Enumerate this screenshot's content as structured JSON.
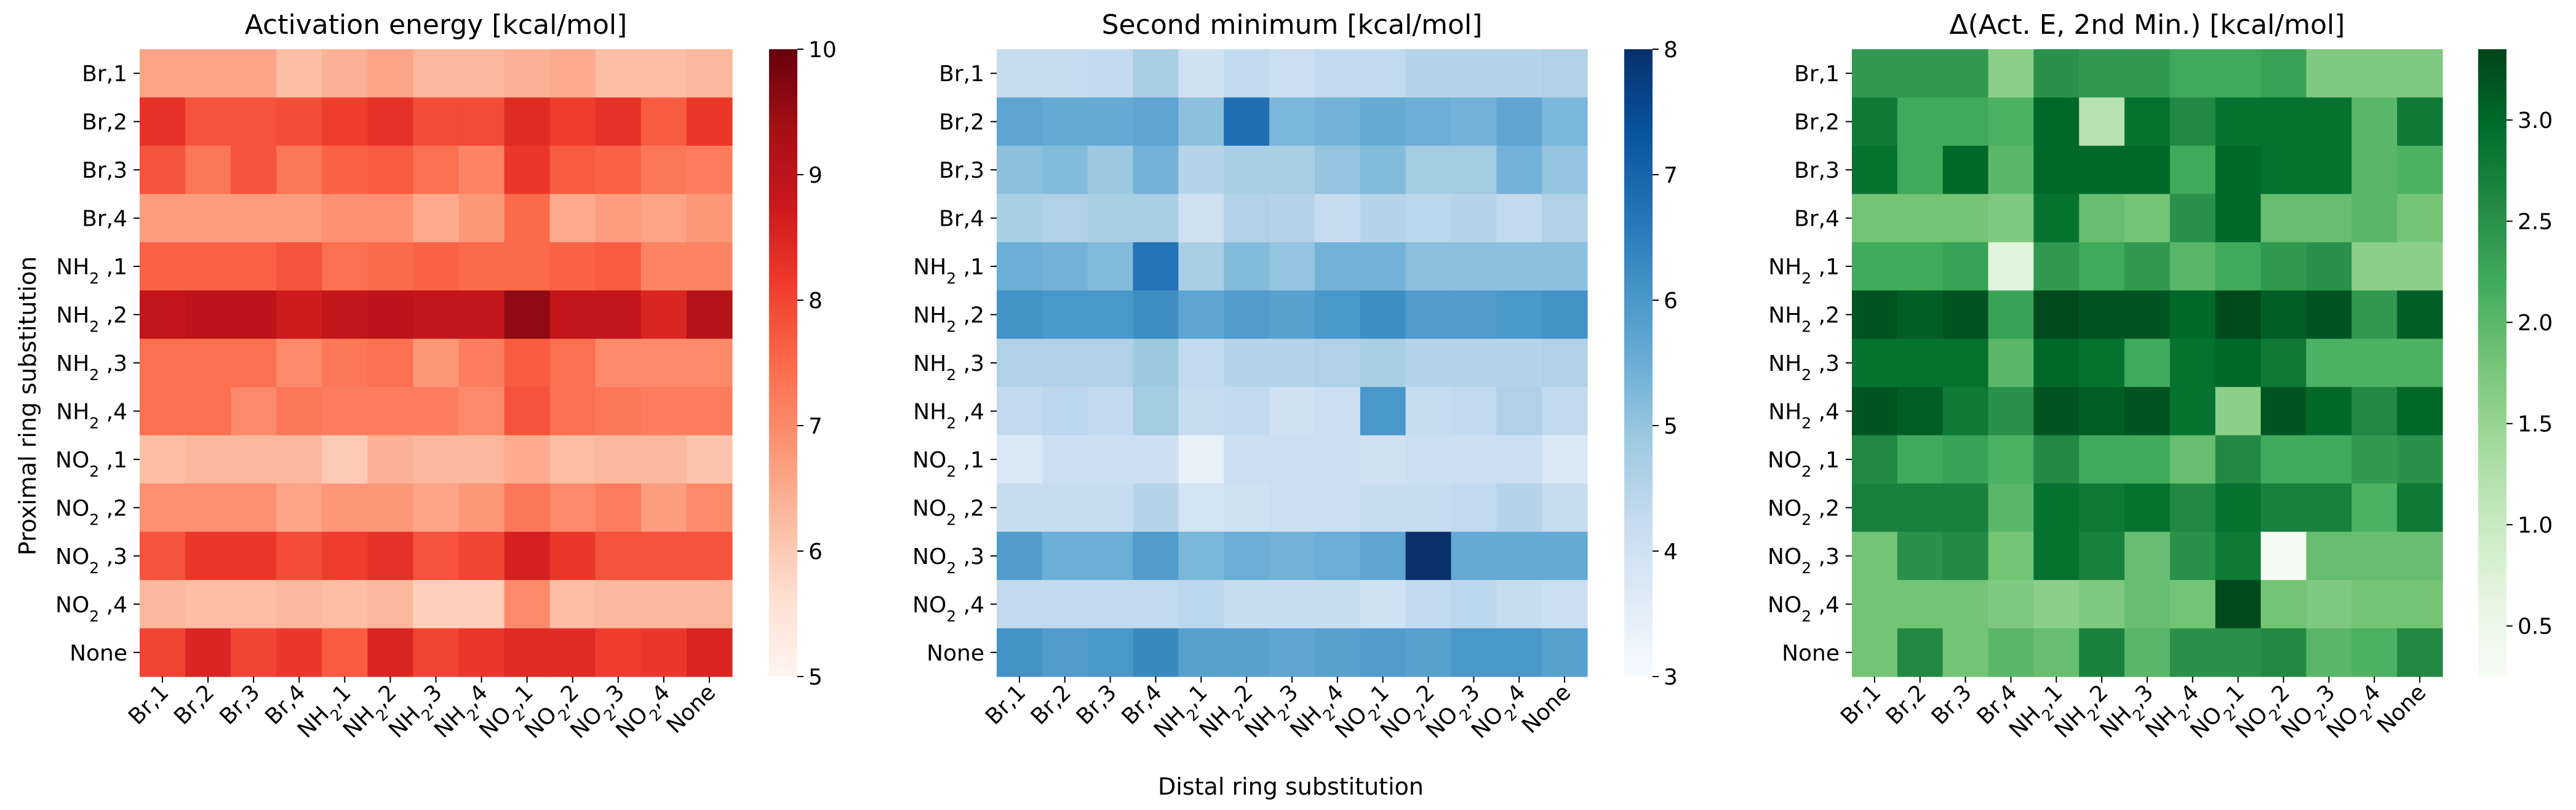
{
  "chart_data": [
    {
      "type": "heatmap",
      "title": "Activation energy [kcal/mol]",
      "colormap": "Reds",
      "color_stops": [
        "#fff5f0",
        "#fee0d2",
        "#fcbba1",
        "#fc9272",
        "#fb6a4a",
        "#ef3b2c",
        "#cb181d",
        "#a50f15",
        "#67000d"
      ],
      "vmin": 5,
      "vmax": 10,
      "colorbar_ticks": [
        "5",
        "6",
        "7",
        "8",
        "9",
        "10"
      ],
      "rows": [
        [
          6.6,
          6.6,
          6.6,
          6.2,
          6.4,
          6.6,
          6.3,
          6.3,
          6.4,
          6.5,
          6.2,
          6.2,
          6.3
        ],
        [
          8.3,
          7.8,
          7.8,
          7.9,
          8.1,
          8.3,
          7.9,
          7.9,
          8.4,
          8.1,
          8.3,
          7.7,
          8.2
        ],
        [
          7.8,
          7.3,
          7.8,
          7.3,
          7.6,
          7.7,
          7.4,
          7.1,
          8.2,
          7.7,
          7.6,
          7.3,
          7.2
        ],
        [
          6.7,
          6.7,
          6.7,
          6.7,
          6.9,
          6.9,
          6.5,
          6.8,
          7.5,
          6.5,
          6.7,
          6.6,
          6.8
        ],
        [
          7.6,
          7.6,
          7.6,
          7.8,
          7.4,
          7.5,
          7.6,
          7.5,
          7.5,
          7.6,
          7.7,
          7.1,
          7.1
        ],
        [
          8.9,
          9.0,
          9.0,
          8.7,
          8.9,
          9.0,
          8.9,
          8.9,
          9.6,
          8.9,
          8.9,
          8.5,
          9.1
        ],
        [
          7.4,
          7.4,
          7.4,
          7.0,
          7.3,
          7.4,
          6.8,
          7.2,
          7.7,
          7.4,
          7.0,
          7.0,
          7.0
        ],
        [
          7.4,
          7.4,
          7.0,
          7.3,
          7.2,
          7.2,
          7.2,
          7.0,
          7.8,
          7.4,
          7.3,
          7.2,
          7.2
        ],
        [
          6.2,
          6.3,
          6.3,
          6.3,
          6.0,
          6.4,
          6.3,
          6.3,
          6.5,
          6.2,
          6.3,
          6.3,
          6.1
        ],
        [
          6.9,
          6.9,
          6.9,
          6.6,
          6.8,
          6.8,
          6.6,
          6.8,
          7.3,
          7.0,
          7.2,
          6.7,
          7.0
        ],
        [
          7.8,
          8.2,
          8.2,
          7.9,
          8.1,
          8.3,
          7.8,
          8.0,
          8.6,
          8.2,
          7.8,
          7.8,
          7.8
        ],
        [
          6.3,
          6.2,
          6.2,
          6.3,
          6.2,
          6.3,
          5.9,
          5.9,
          7.0,
          6.2,
          6.3,
          6.3,
          6.3
        ],
        [
          8.0,
          8.5,
          8.0,
          8.2,
          7.7,
          8.5,
          8.0,
          8.2,
          8.4,
          8.4,
          8.1,
          8.2,
          8.5
        ]
      ]
    },
    {
      "type": "heatmap",
      "title": "Second minimum [kcal/mol]",
      "colormap": "Blues",
      "color_stops": [
        "#f7fbff",
        "#deebf7",
        "#c6dbef",
        "#9ecae1",
        "#6baed6",
        "#4292c6",
        "#2171b5",
        "#08519c",
        "#08306b"
      ],
      "vmin": 3,
      "vmax": 8,
      "colorbar_ticks": [
        "3",
        "4",
        "5",
        "6",
        "7",
        "8"
      ],
      "rows": [
        [
          4.2,
          4.2,
          4.3,
          4.7,
          4.0,
          4.3,
          4.1,
          4.3,
          4.3,
          4.5,
          4.5,
          4.5,
          4.6
        ],
        [
          5.7,
          5.6,
          5.6,
          5.7,
          5.1,
          6.8,
          5.3,
          5.4,
          5.6,
          5.5,
          5.4,
          5.7,
          5.3
        ],
        [
          5.1,
          5.2,
          4.9,
          5.4,
          4.5,
          4.7,
          4.7,
          5.0,
          5.2,
          4.8,
          4.8,
          5.4,
          5.0
        ],
        [
          4.7,
          4.6,
          4.7,
          4.7,
          4.0,
          4.6,
          4.5,
          4.2,
          4.5,
          4.4,
          4.5,
          4.3,
          4.6
        ],
        [
          5.5,
          5.4,
          5.2,
          6.7,
          4.7,
          5.2,
          5.0,
          5.4,
          5.4,
          5.1,
          5.1,
          5.1,
          5.1
        ],
        [
          6.1,
          6.0,
          6.0,
          6.2,
          5.7,
          5.9,
          5.8,
          6.0,
          6.2,
          5.9,
          5.9,
          6.0,
          6.1
        ],
        [
          4.6,
          4.6,
          4.6,
          4.9,
          4.3,
          4.5,
          4.5,
          4.6,
          4.7,
          4.5,
          4.5,
          4.5,
          4.6
        ],
        [
          4.3,
          4.4,
          4.3,
          4.8,
          4.2,
          4.3,
          4.0,
          4.1,
          6.0,
          4.2,
          4.3,
          4.6,
          4.3
        ],
        [
          3.7,
          4.1,
          4.1,
          4.1,
          3.4,
          4.1,
          4.1,
          4.1,
          4.0,
          4.1,
          4.1,
          4.1,
          3.7
        ],
        [
          4.2,
          4.2,
          4.2,
          4.5,
          3.9,
          4.0,
          4.1,
          4.1,
          4.2,
          4.2,
          4.3,
          4.5,
          4.2
        ],
        [
          5.9,
          5.5,
          5.5,
          5.9,
          5.3,
          5.5,
          5.4,
          5.5,
          5.7,
          8.0,
          5.6,
          5.6,
          5.6
        ],
        [
          4.3,
          4.3,
          4.3,
          4.3,
          4.4,
          4.2,
          4.2,
          4.2,
          4.0,
          4.3,
          4.4,
          4.2,
          4.1
        ],
        [
          6.1,
          5.9,
          6.0,
          6.3,
          5.8,
          5.8,
          5.7,
          5.8,
          5.9,
          5.8,
          6.0,
          6.0,
          5.8
        ]
      ]
    },
    {
      "type": "heatmap",
      "title": "Δ(Act. E, 2nd Min.) [kcal/mol]",
      "colormap": "Greens",
      "color_stops": [
        "#f7fcf5",
        "#e5f5e0",
        "#c7e9c0",
        "#a1d99b",
        "#74c476",
        "#41ab5d",
        "#238b45",
        "#006d2c",
        "#00441b"
      ],
      "vmin": 0.25,
      "vmax": 3.35,
      "colorbar_ticks": [
        "0.5",
        "1.0",
        "1.5",
        "2.0",
        "2.5",
        "3.0"
      ],
      "rows": [
        [
          2.4,
          2.4,
          2.4,
          1.6,
          2.5,
          2.4,
          2.4,
          2.2,
          2.2,
          2.3,
          1.7,
          1.7,
          1.7
        ],
        [
          2.8,
          2.2,
          2.2,
          2.1,
          3.0,
          1.2,
          2.9,
          2.6,
          2.9,
          2.9,
          2.9,
          2.0,
          2.8
        ],
        [
          2.9,
          2.2,
          3.0,
          2.0,
          3.0,
          3.0,
          3.0,
          2.2,
          3.0,
          2.9,
          2.9,
          2.0,
          2.1
        ],
        [
          1.8,
          1.8,
          1.8,
          1.7,
          2.9,
          1.9,
          1.8,
          2.5,
          3.0,
          1.9,
          1.9,
          2.0,
          1.8
        ],
        [
          2.2,
          2.2,
          2.3,
          0.7,
          2.4,
          2.2,
          2.4,
          2.0,
          2.2,
          2.4,
          2.5,
          1.6,
          1.6
        ],
        [
          3.2,
          3.1,
          3.2,
          2.3,
          3.3,
          3.2,
          3.2,
          3.0,
          3.3,
          3.1,
          3.2,
          2.4,
          3.1
        ],
        [
          2.9,
          2.9,
          2.9,
          2.0,
          3.0,
          2.9,
          2.2,
          2.9,
          3.0,
          2.8,
          2.1,
          2.1,
          2.1
        ],
        [
          3.2,
          3.1,
          2.8,
          2.5,
          3.2,
          3.1,
          3.2,
          2.9,
          1.6,
          3.2,
          3.0,
          2.6,
          3.0
        ],
        [
          2.6,
          2.2,
          2.3,
          2.1,
          2.6,
          2.2,
          2.2,
          1.9,
          2.6,
          2.2,
          2.2,
          2.4,
          2.5
        ],
        [
          2.7,
          2.7,
          2.7,
          2.0,
          2.9,
          2.8,
          2.9,
          2.6,
          2.9,
          2.7,
          2.7,
          2.1,
          2.8
        ],
        [
          1.8,
          2.5,
          2.6,
          1.8,
          2.9,
          2.7,
          1.9,
          2.5,
          2.8,
          0.3,
          1.9,
          1.9,
          1.9
        ],
        [
          1.8,
          1.8,
          1.8,
          1.7,
          1.6,
          1.7,
          1.9,
          1.8,
          3.3,
          1.8,
          1.7,
          1.8,
          1.8
        ],
        [
          1.8,
          2.6,
          1.8,
          2.0,
          1.9,
          2.7,
          2.0,
          2.5,
          2.5,
          2.6,
          2.0,
          2.1,
          2.6
        ]
      ]
    }
  ],
  "y_tick_labels": [
    {
      "base": "Br",
      "sub": "",
      "rest": ",1"
    },
    {
      "base": "Br",
      "sub": "",
      "rest": ",2"
    },
    {
      "base": "Br",
      "sub": "",
      "rest": ",3"
    },
    {
      "base": "Br",
      "sub": "",
      "rest": ",4"
    },
    {
      "base": "NH",
      "sub": "2",
      "rest": " ,1"
    },
    {
      "base": "NH",
      "sub": "2",
      "rest": " ,2"
    },
    {
      "base": "NH",
      "sub": "2",
      "rest": " ,3"
    },
    {
      "base": "NH",
      "sub": "2",
      "rest": " ,4"
    },
    {
      "base": "NO",
      "sub": "2",
      "rest": " ,1"
    },
    {
      "base": "NO",
      "sub": "2",
      "rest": " ,2"
    },
    {
      "base": "NO",
      "sub": "2",
      "rest": " ,3"
    },
    {
      "base": "NO",
      "sub": "2",
      "rest": " ,4"
    },
    {
      "base": "None",
      "sub": "",
      "rest": ""
    }
  ],
  "x_tick_labels": [
    {
      "base": "Br",
      "sub": "",
      "rest": ",1"
    },
    {
      "base": "Br",
      "sub": "",
      "rest": ",2"
    },
    {
      "base": "Br",
      "sub": "",
      "rest": ",3"
    },
    {
      "base": "Br",
      "sub": "",
      "rest": ",4"
    },
    {
      "base": "NH",
      "sub": "2",
      "rest": ",1"
    },
    {
      "base": "NH",
      "sub": "2",
      "rest": ",2"
    },
    {
      "base": "NH",
      "sub": "2",
      "rest": ",3"
    },
    {
      "base": "NH",
      "sub": "2",
      "rest": ",4"
    },
    {
      "base": "NO",
      "sub": "2",
      "rest": ",1"
    },
    {
      "base": "NO",
      "sub": "2",
      "rest": ",2"
    },
    {
      "base": "NO",
      "sub": "2",
      "rest": ",3"
    },
    {
      "base": "NO",
      "sub": "2",
      "rest": ",4"
    },
    {
      "base": "None",
      "sub": "",
      "rest": ""
    }
  ],
  "ylabel": "Proximal ring substitution",
  "xlabel": "Distal ring substitution"
}
